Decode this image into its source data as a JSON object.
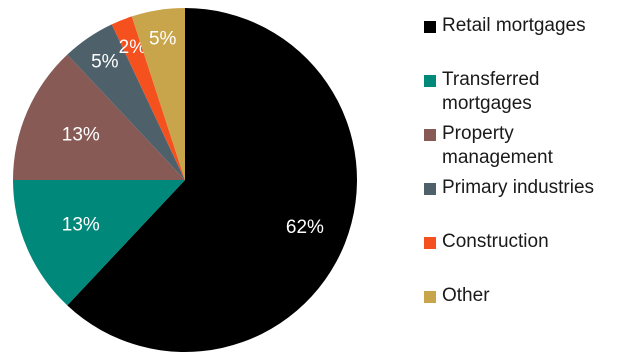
{
  "chart_data": {
    "type": "pie",
    "title": "",
    "slices": [
      {
        "label": "Retail mortgages",
        "value": 62,
        "display": "62%",
        "color": "#000000"
      },
      {
        "label": "Transferred mortgages",
        "value": 13,
        "display": "13%",
        "color": "#00897b"
      },
      {
        "label": "Property management",
        "value": 13,
        "display": "13%",
        "color": "#875a55"
      },
      {
        "label": "Primary industries",
        "value": 5,
        "display": "5%",
        "color": "#4e616b"
      },
      {
        "label": "Construction",
        "value": 2,
        "display": "2%",
        "color": "#f4511e"
      },
      {
        "label": "Other",
        "value": 5,
        "display": "5%",
        "color": "#c8a54a"
      }
    ],
    "legend_position": "right"
  }
}
